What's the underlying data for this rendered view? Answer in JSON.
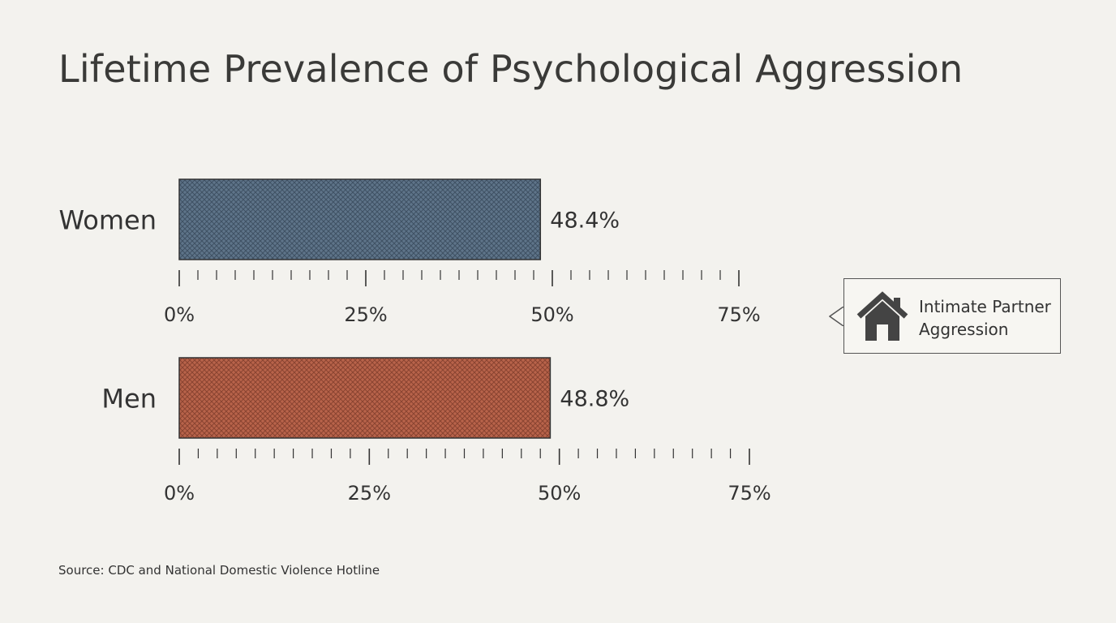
{
  "chart_data": {
    "type": "bar",
    "orientation": "horizontal",
    "title": "Lifetime Prevalence of Psychological Aggression",
    "categories": [
      "Women",
      "Men"
    ],
    "values": [
      48.4,
      48.8
    ],
    "value_labels": [
      "48.4%",
      "48.8%"
    ],
    "tick_labels": [
      "0%",
      "25%",
      "50%",
      "75%"
    ],
    "xlim": [
      0,
      75
    ],
    "minor_tick_step": 2.5,
    "colors": [
      "#5e7489",
      "#b8634a"
    ],
    "legend": {
      "placement": "right",
      "label": "Intimate Partner Aggression",
      "icon": "house-icon"
    },
    "grid": false
  },
  "source": "Source: CDC and National Domestic Violence Hotline"
}
